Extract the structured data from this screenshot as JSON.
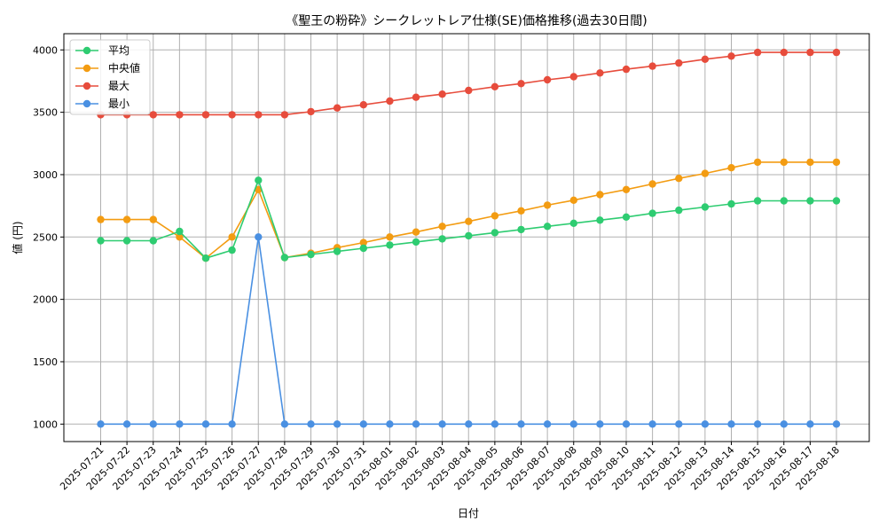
{
  "chart_data": {
    "type": "line",
    "title": "《聖王の粉砕》シークレットレア仕様(SE)価格推移(過去30日間)",
    "xlabel": "日付",
    "ylabel": "値 (円)",
    "ylim": [
      860,
      4130
    ],
    "yticks": [
      1000,
      1500,
      2000,
      2500,
      3000,
      3500,
      4000
    ],
    "grid": true,
    "legend_position": "top-left",
    "categories": [
      "2025-07-21",
      "2025-07-22",
      "2025-07-23",
      "2025-07-24",
      "2025-07-25",
      "2025-07-26",
      "2025-07-27",
      "2025-07-28",
      "2025-07-29",
      "2025-07-30",
      "2025-07-31",
      "2025-08-01",
      "2025-08-02",
      "2025-08-03",
      "2025-08-04",
      "2025-08-05",
      "2025-08-06",
      "2025-08-07",
      "2025-08-08",
      "2025-08-09",
      "2025-08-10",
      "2025-08-11",
      "2025-08-12",
      "2025-08-13",
      "2025-08-14",
      "2025-08-15",
      "2025-08-16",
      "2025-08-17",
      "2025-08-18"
    ],
    "series": [
      {
        "name": "平均",
        "color": "#2ecc71",
        "values": [
          2470,
          2470,
          2470,
          2545,
          2330,
          2395,
          2955,
          2335,
          2360,
          2385,
          2410,
          2435,
          2460,
          2485,
          2510,
          2535,
          2560,
          2585,
          2610,
          2635,
          2660,
          2690,
          2715,
          2740,
          2765,
          2790,
          2790,
          2790,
          2790
        ]
      },
      {
        "name": "中央値",
        "color": "#f39c12",
        "values": [
          2640,
          2640,
          2640,
          2500,
          2330,
          2500,
          2880,
          2335,
          2370,
          2415,
          2455,
          2500,
          2540,
          2585,
          2625,
          2670,
          2710,
          2755,
          2795,
          2840,
          2880,
          2925,
          2970,
          3010,
          3055,
          3100,
          3100,
          3100,
          3100
        ]
      },
      {
        "name": "最大",
        "color": "#e74c3c",
        "values": [
          3480,
          3480,
          3480,
          3480,
          3480,
          3480,
          3480,
          3480,
          3505,
          3535,
          3560,
          3590,
          3620,
          3645,
          3675,
          3705,
          3730,
          3760,
          3785,
          3815,
          3845,
          3870,
          3895,
          3925,
          3950,
          3980,
          3980,
          3980,
          3980
        ]
      },
      {
        "name": "最小",
        "color": "#4a90e2",
        "values": [
          1000,
          1000,
          1000,
          1000,
          1000,
          1000,
          2500,
          1000,
          1000,
          1000,
          1000,
          1000,
          1000,
          1000,
          1000,
          1000,
          1000,
          1000,
          1000,
          1000,
          1000,
          1000,
          1000,
          1000,
          1000,
          1000,
          1000,
          1000,
          1000
        ]
      }
    ]
  }
}
